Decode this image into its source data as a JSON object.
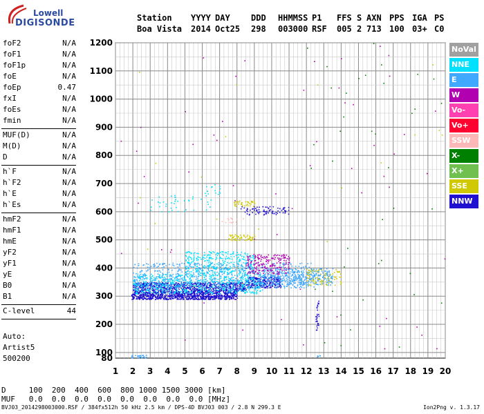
{
  "header": {
    "row1": [
      "Station",
      "YYYY",
      "DAY",
      "DDD",
      "HHMMSS",
      "P1",
      "FFS",
      "S",
      "AXN",
      "PPS",
      "IGA",
      "PS"
    ],
    "row2": [
      "Boa Vista",
      "2014",
      "Oct25",
      "298",
      "003000",
      "RSF",
      "005",
      "2",
      "713",
      "100",
      "03+",
      "C0"
    ]
  },
  "logo": {
    "line1": "Lowell",
    "line2": "DIGISONDE"
  },
  "params": {
    "group1": [
      {
        "name": "foF2",
        "value": "N/A"
      },
      {
        "name": "foF1",
        "value": "N/A"
      },
      {
        "name": "foF1p",
        "value": "N/A"
      },
      {
        "name": "foE",
        "value": "N/A"
      },
      {
        "name": "foEp",
        "value": "0.47"
      },
      {
        "name": "fxI",
        "value": "N/A"
      },
      {
        "name": "foEs",
        "value": "N/A"
      },
      {
        "name": "fmin",
        "value": "N/A"
      }
    ],
    "group2": [
      {
        "name": "MUF(D)",
        "value": "N/A"
      },
      {
        "name": "M(D)",
        "value": "N/A"
      },
      {
        "name": "D",
        "value": "N/A"
      }
    ],
    "group3": [
      {
        "name": "h`F",
        "value": "N/A"
      },
      {
        "name": "h`F2",
        "value": "N/A"
      },
      {
        "name": "h`E",
        "value": "N/A"
      },
      {
        "name": "h`Es",
        "value": "N/A"
      }
    ],
    "group4": [
      {
        "name": "hmF2",
        "value": "N/A"
      },
      {
        "name": "hmF1",
        "value": "N/A"
      },
      {
        "name": "hmE",
        "value": "N/A"
      },
      {
        "name": "yF2",
        "value": "N/A"
      },
      {
        "name": "yF1",
        "value": "N/A"
      },
      {
        "name": "yE",
        "value": "N/A"
      },
      {
        "name": "B0",
        "value": "N/A"
      },
      {
        "name": "B1",
        "value": "N/A"
      }
    ],
    "group5": [
      {
        "name": "C-level",
        "value": "44"
      }
    ]
  },
  "auto": {
    "line1": "Auto:",
    "line2": "Artist5",
    "line3": "500200"
  },
  "footer": {
    "d_row": "D     100  200  400  600  800 1000 1500 3000 [km]",
    "muf_row": "MUF   0.0  0.0  0.0  0.0  0.0  0.0  0.0  0.0 [MHz]",
    "bottom_line": "BVJ03_2014298003000.RSF / 384fx512h 50 kHz 2.5 km / DPS-4D BVJ03 003 / 2.8 N 299.3 E",
    "version": "Ion2Png v. 1.3.17"
  },
  "legend": [
    {
      "label": "NoVal",
      "color": "#a0a0a0"
    },
    {
      "label": "NNE",
      "color": "#00e0ff"
    },
    {
      "label": "E",
      "color": "#40a8ff"
    },
    {
      "label": "W",
      "color": "#b000b0"
    },
    {
      "label": "Vo-",
      "color": "#ff40b0"
    },
    {
      "label": "Vo+",
      "color": "#ff0030"
    },
    {
      "label": "SSW",
      "color": "#ffb8b8"
    },
    {
      "label": "X-",
      "color": "#008000"
    },
    {
      "label": "X+",
      "color": "#70c050"
    },
    {
      "label": "SSE",
      "color": "#d0c800"
    },
    {
      "label": "NNW",
      "color": "#2010d0"
    }
  ],
  "chart_data": {
    "type": "scatter",
    "xlim": [
      1,
      20
    ],
    "ylim": [
      80,
      1200
    ],
    "x_ticks": [
      1,
      2,
      3,
      4,
      5,
      6,
      7,
      8,
      9,
      10,
      11,
      12,
      13,
      14,
      15,
      16,
      17,
      18,
      19,
      20
    ],
    "y_ticks": [
      80,
      100,
      200,
      300,
      400,
      500,
      600,
      700,
      800,
      900,
      1000,
      1100,
      1200
    ],
    "grid": true,
    "legend_position": "right",
    "clusters": [
      {
        "series": "NNW",
        "x": [
          1.9,
          8.0
        ],
        "y": [
          290,
          320
        ],
        "density": 900
      },
      {
        "series": "NNW",
        "x": [
          2.0,
          8.5
        ],
        "y": [
          320,
          350
        ],
        "density": 700
      },
      {
        "series": "NNW",
        "x": [
          8.5,
          10.5
        ],
        "y": [
          330,
          370
        ],
        "density": 250
      },
      {
        "series": "NNE",
        "x": [
          2.0,
          9.5
        ],
        "y": [
          310,
          380
        ],
        "density": 600
      },
      {
        "series": "NNE",
        "x": [
          5.0,
          9.0
        ],
        "y": [
          380,
          460
        ],
        "density": 350
      },
      {
        "series": "E",
        "x": [
          2.0,
          12.5
        ],
        "y": [
          330,
          420
        ],
        "density": 650
      },
      {
        "series": "E",
        "x": [
          9.5,
          13.5
        ],
        "y": [
          340,
          400
        ],
        "density": 350
      },
      {
        "series": "W",
        "x": [
          8.5,
          11.0
        ],
        "y": [
          380,
          450
        ],
        "density": 200
      },
      {
        "series": "NNW",
        "x": [
          8.2,
          11.0
        ],
        "y": [
          590,
          620
        ],
        "density": 80
      },
      {
        "series": "SSE",
        "x": [
          7.8,
          9.0
        ],
        "y": [
          620,
          640
        ],
        "density": 40
      },
      {
        "series": "SSE",
        "x": [
          7.5,
          9.0
        ],
        "y": [
          500,
          520
        ],
        "density": 60
      },
      {
        "series": "SSE",
        "x": [
          12.0,
          14.0
        ],
        "y": [
          340,
          400
        ],
        "density": 80
      },
      {
        "series": "NNE",
        "x": [
          3.0,
          6.5
        ],
        "y": [
          600,
          660
        ],
        "density": 40
      },
      {
        "series": "NNE",
        "x": [
          6.0,
          7.0
        ],
        "y": [
          660,
          700
        ],
        "density": 15
      },
      {
        "series": "SSW",
        "x": [
          7.0,
          8.5
        ],
        "y": [
          560,
          580
        ],
        "density": 15
      },
      {
        "series": "NNW",
        "x": [
          12.5,
          12.7
        ],
        "y": [
          180,
          290
        ],
        "density": 30
      },
      {
        "series": "E",
        "x": [
          1.9,
          2.8
        ],
        "y": [
          82,
          92
        ],
        "density": 25
      },
      {
        "series": "E",
        "x": [
          12.6,
          12.8
        ],
        "y": [
          85,
          90
        ],
        "density": 5
      },
      {
        "series": "X-",
        "x": [
          12.0,
          20.0
        ],
        "y": [
          100,
          1200
        ],
        "density": 40
      },
      {
        "series": "W",
        "x": [
          1.0,
          20.0
        ],
        "y": [
          100,
          1200
        ],
        "density": 60
      },
      {
        "series": "SSE",
        "x": [
          2.0,
          20.0
        ],
        "y": [
          300,
          1200
        ],
        "density": 20
      }
    ]
  }
}
